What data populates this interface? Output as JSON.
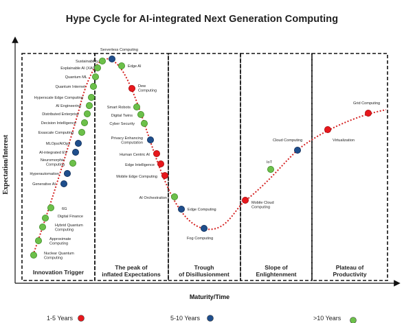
{
  "title": "Hype Cycle for AI-integrated Next Generation Computing",
  "axes": {
    "y_label": "Expectation/Interest",
    "x_label": "Maturity/Time"
  },
  "phases": [
    "Innovation Trigger",
    "The peak of inflated Expectations",
    "Trough of Disillusionment",
    "Slope of Enlightenment",
    "Plateau of Productivity"
  ],
  "legend": [
    {
      "label": "1-5 Years",
      "color": "#e8171c"
    },
    {
      "label": "5-10 Years",
      "color": "#1f4e8c"
    },
    {
      "label": ">10 Years",
      "color": "#6cc04a"
    }
  ],
  "colors": {
    "red": "#e8171c",
    "blue": "#1f4e8c",
    "green": "#6cc04a",
    "curve": "#d42020"
  },
  "technologies": [
    {
      "label": "Nuclear Quantum Computing",
      "maturity": "green"
    },
    {
      "label": "Approximate Computing",
      "maturity": "green"
    },
    {
      "label": "Hybrid Quantum Computing",
      "maturity": "green"
    },
    {
      "label": "Digital Finance",
      "maturity": "green"
    },
    {
      "label": "6G",
      "maturity": "green"
    },
    {
      "label": "Generative AI",
      "maturity": "blue"
    },
    {
      "label": "Hyperautomation",
      "maturity": "blue"
    },
    {
      "label": "Neuromorphic Computing",
      "maturity": "green"
    },
    {
      "label": "AI-integrated EV",
      "maturity": "blue"
    },
    {
      "label": "MLOps/AIOps",
      "maturity": "blue"
    },
    {
      "label": "Exascale Computing",
      "maturity": "green"
    },
    {
      "label": "Decision Intelligence",
      "maturity": "green"
    },
    {
      "label": "Distributed Enterprise",
      "maturity": "green"
    },
    {
      "label": "AI Engineering",
      "maturity": "green"
    },
    {
      "label": "Hyperscale Edge Computing",
      "maturity": "green"
    },
    {
      "label": "Quantum Internet",
      "maturity": "green"
    },
    {
      "label": "Quantum ML",
      "maturity": "green"
    },
    {
      "label": "Explainable AI (XAI)",
      "maturity": "green"
    },
    {
      "label": "Sustainability",
      "maturity": "green"
    },
    {
      "label": "Serverless Computing",
      "maturity": "blue"
    },
    {
      "label": "Edge AI",
      "maturity": "green"
    },
    {
      "label": "Dew Computing",
      "maturity": "red"
    },
    {
      "label": "Smart Robots",
      "maturity": "green"
    },
    {
      "label": "Digital Twins",
      "maturity": "green"
    },
    {
      "label": "Cyber Security",
      "maturity": "green"
    },
    {
      "label": "Privacy Enhancing Computation",
      "maturity": "blue"
    },
    {
      "label": "Human Centric AI",
      "maturity": "red"
    },
    {
      "label": "Edge Intelligence",
      "maturity": "red"
    },
    {
      "label": "Mobile Edge Computing",
      "maturity": "red"
    },
    {
      "label": "AI Orchestration",
      "maturity": "green"
    },
    {
      "label": "Edge Computing",
      "maturity": "blue"
    },
    {
      "label": "Fog Computing",
      "maturity": "blue"
    },
    {
      "label": "Mobile Cloud Computing",
      "maturity": "red"
    },
    {
      "label": "IoT",
      "maturity": "green"
    },
    {
      "label": "Cloud Computing",
      "maturity": "blue"
    },
    {
      "label": "Virtualization",
      "maturity": "red"
    },
    {
      "label": "Grid Computing",
      "maturity": "red"
    }
  ]
}
